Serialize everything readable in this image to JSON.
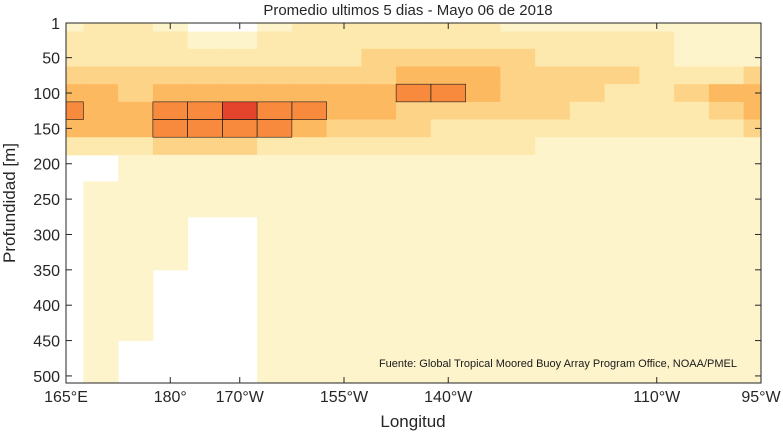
{
  "chart_data": {
    "type": "heatmap",
    "subtype": "filled-contour",
    "title": "Promedio ultimos 5 dias - Mayo 06 de 2018",
    "xlabel": "Longitud",
    "ylabel": "Profundidad [m]",
    "source": "Fuente: Global Tropical Moored Buoy Array Program Office, NOAA/PMEL",
    "x_ticks": [
      {
        "value": 165,
        "label": "165°E"
      },
      {
        "value": 180,
        "label": "180°"
      },
      {
        "value": 190,
        "label": "170°W"
      },
      {
        "value": 205,
        "label": "155°W"
      },
      {
        "value": 220,
        "label": "140°W"
      },
      {
        "value": 250,
        "label": "110°W"
      },
      {
        "value": 265,
        "label": "95°W"
      }
    ],
    "xlim": [
      165,
      265
    ],
    "y_ticks": [
      1,
      50,
      100,
      150,
      200,
      250,
      300,
      350,
      400,
      450,
      500
    ],
    "ylim": [
      1,
      510
    ],
    "y_reversed": true,
    "grid": false,
    "levels_colors": [
      "#fdf4cc",
      "#fde9ad",
      "#fdd487",
      "#fdb95f",
      "#f78a3c",
      "#e4442b",
      "#c5152d"
    ],
    "x": [
      165,
      170,
      175,
      180,
      185,
      190,
      195,
      200,
      205,
      210,
      215,
      220,
      225,
      230,
      235,
      240,
      245,
      250,
      255,
      260,
      265
    ],
    "depths": [
      1,
      25,
      50,
      75,
      100,
      125,
      150,
      175,
      200,
      250,
      300,
      400,
      500
    ],
    "values": [
      [
        1,
        2,
        2,
        1,
        0,
        0,
        1,
        2,
        2,
        2,
        2,
        2,
        2,
        1,
        1,
        1,
        1,
        1,
        1,
        1,
        1
      ],
      [
        2,
        2,
        2,
        2,
        1,
        1,
        2,
        2,
        2,
        2,
        2,
        2,
        2,
        2,
        2,
        2,
        2,
        2,
        1,
        1,
        1
      ],
      [
        2,
        2,
        2,
        2,
        2,
        2,
        2,
        2,
        2,
        3,
        3,
        3,
        3,
        3,
        2,
        2,
        2,
        2,
        1,
        1,
        1
      ],
      [
        3,
        3,
        3,
        3,
        3,
        3,
        3,
        3,
        3,
        3,
        4,
        4,
        4,
        3,
        3,
        3,
        3,
        2,
        2,
        2,
        3
      ],
      [
        4,
        4,
        3,
        4,
        4,
        4,
        4,
        4,
        4,
        4,
        5,
        5,
        4,
        3,
        3,
        3,
        2,
        2,
        3,
        4,
        4
      ],
      [
        5,
        4,
        4,
        5,
        5,
        6,
        5,
        5,
        4,
        4,
        3,
        3,
        3,
        3,
        3,
        2,
        2,
        2,
        2,
        3,
        4
      ],
      [
        4,
        4,
        4,
        5,
        5,
        5,
        5,
        4,
        3,
        3,
        3,
        2,
        2,
        2,
        2,
        2,
        2,
        2,
        2,
        2,
        3
      ],
      [
        2,
        2,
        2,
        3,
        3,
        3,
        2,
        2,
        2,
        2,
        2,
        2,
        2,
        2,
        1,
        1,
        1,
        1,
        1,
        1,
        1
      ],
      [
        0,
        0,
        1,
        1,
        1,
        1,
        1,
        1,
        1,
        1,
        1,
        1,
        1,
        1,
        1,
        1,
        1,
        1,
        1,
        1,
        1
      ],
      [
        0,
        1,
        1,
        1,
        1,
        1,
        1,
        1,
        1,
        1,
        1,
        1,
        1,
        1,
        1,
        1,
        1,
        1,
        1,
        1,
        1
      ],
      [
        0,
        1,
        1,
        1,
        0,
        0,
        1,
        1,
        1,
        1,
        1,
        1,
        1,
        1,
        1,
        1,
        1,
        1,
        1,
        1,
        1
      ],
      [
        0,
        1,
        1,
        0,
        0,
        0,
        1,
        1,
        1,
        1,
        1,
        1,
        1,
        1,
        1,
        1,
        1,
        1,
        1,
        1,
        1
      ],
      [
        0,
        1,
        0,
        0,
        0,
        0,
        1,
        1,
        1,
        1,
        1,
        1,
        1,
        1,
        1,
        1,
        1,
        1,
        1,
        1,
        1
      ]
    ]
  }
}
